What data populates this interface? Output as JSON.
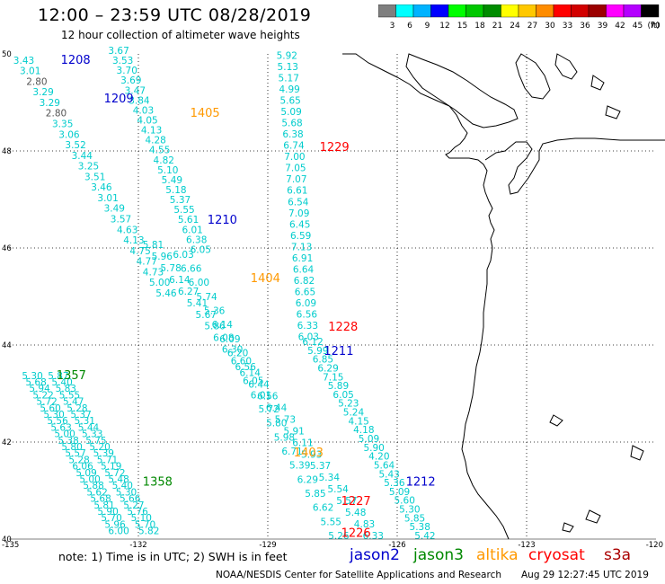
{
  "header": {
    "title": "12:00 – 23:59 UTC 08/28/2019",
    "subtitle": "12 hour collection of altimeter wave heights"
  },
  "colorbar": {
    "colors": [
      "#7f7f7f",
      "#00ffff",
      "#00b3ff",
      "#0000ff",
      "#00ff00",
      "#00c800",
      "#008c00",
      "#ffff00",
      "#ffc800",
      "#ff8c00",
      "#ff0000",
      "#d20000",
      "#9b0000",
      "#ff00ff",
      "#b400ff",
      "#000000"
    ],
    "ticks": [
      "3",
      "6",
      "9",
      "12",
      "15",
      "18",
      "21",
      "24",
      "27",
      "30",
      "33",
      "36",
      "39",
      "42",
      "45",
      "70"
    ],
    "unit": "(ft)"
  },
  "axes": {
    "lat_labels": [
      "50",
      "48",
      "46",
      "44",
      "42",
      "40"
    ],
    "lon_labels": [
      "-135",
      "-132",
      "-129",
      "-126",
      "-123",
      "-120"
    ],
    "lat_range": [
      40,
      50
    ],
    "lon_range": [
      -135,
      -120
    ]
  },
  "colors": {
    "swh": "#00cccc",
    "swh_grey": "#555555",
    "jason2": "#0000cc",
    "jason3": "#008800",
    "altika": "#ff9900",
    "cryosat": "#ff0000",
    "s3a": "#aa0000",
    "coast": "#000000"
  },
  "pass_labels": [
    {
      "text": "1208",
      "lon": -133.8,
      "lat": 49.8,
      "mission": "jason2"
    },
    {
      "text": "1209",
      "lon": -132.8,
      "lat": 49.0,
      "mission": "jason2"
    },
    {
      "text": "1405",
      "lon": -130.8,
      "lat": 48.7,
      "mission": "altika"
    },
    {
      "text": "1229",
      "lon": -127.8,
      "lat": 48.0,
      "mission": "cryosat"
    },
    {
      "text": "1210",
      "lon": -130.4,
      "lat": 46.5,
      "mission": "jason2"
    },
    {
      "text": "1404",
      "lon": -129.4,
      "lat": 45.3,
      "mission": "altika"
    },
    {
      "text": "1228",
      "lon": -127.6,
      "lat": 44.3,
      "mission": "cryosat"
    },
    {
      "text": "1211",
      "lon": -127.7,
      "lat": 43.8,
      "mission": "jason2"
    },
    {
      "text": "1357",
      "lon": -133.9,
      "lat": 43.3,
      "mission": "jason3"
    },
    {
      "text": "1403",
      "lon": -128.4,
      "lat": 41.7,
      "mission": "altika"
    },
    {
      "text": "1212",
      "lon": -125.8,
      "lat": 41.1,
      "mission": "jason2"
    },
    {
      "text": "1358",
      "lon": -131.9,
      "lat": 41.1,
      "mission": "jason3"
    },
    {
      "text": "1227",
      "lon": -127.3,
      "lat": 40.7,
      "mission": "cryosat"
    },
    {
      "text": "1226",
      "lon": -127.3,
      "lat": 40.05,
      "mission": "cryosat"
    }
  ],
  "tracks": [
    {
      "name": "track-1208",
      "start": [
        -134.9,
        49.8
      ],
      "end": [
        -131.6,
        45.0
      ],
      "values": [
        "3.43",
        "3.01",
        "2.80",
        "3.29",
        "3.29",
        "2.80",
        "3.35",
        "3.06",
        "3.52",
        "3.44",
        "3.25",
        "3.51",
        "3.46",
        "3.01",
        "3.49",
        "3.57",
        "4.63",
        "4.13",
        "4.75",
        "4.77",
        "4.73",
        "5.00",
        "5.46"
      ],
      "grey_indices": [
        2,
        5
      ]
    },
    {
      "name": "track-1405",
      "start": [
        -132.7,
        50.0
      ],
      "end": [
        -130.8,
        45.9
      ],
      "values": [
        "3.67",
        "3.53",
        "3.70",
        "3.69",
        "3.47",
        "3.84",
        "4.03",
        "4.05",
        "4.13",
        "4.28",
        "4.55",
        "4.82",
        "5.10",
        "5.49",
        "5.18",
        "5.37",
        "5.55",
        "5.61",
        "6.01",
        "6.38",
        "6.05"
      ]
    },
    {
      "name": "track-1210",
      "start": [
        -131.9,
        46.0
      ],
      "end": [
        -126.8,
        40.0
      ],
      "values": [
        "5.81",
        "5.96",
        "5.78",
        "6.14",
        "6.27",
        "5.41",
        "5.67",
        "5.86",
        "6.08",
        "6.30",
        "6.60",
        "6.14",
        "6.44",
        "6.56",
        "6.44",
        "5.73",
        "5.91",
        "6.11",
        "5.93",
        "5.37",
        "5.34",
        "5.54",
        "5.57",
        "5.48",
        "4.83",
        "6.33"
      ]
    },
    {
      "name": "track-1404",
      "start": [
        -131.2,
        45.8
      ],
      "end": [
        -127.6,
        40.0
      ],
      "values": [
        "6.03",
        "6.66",
        "6.00",
        "5.74",
        "5.36",
        "6.14",
        "6.09",
        "6.20",
        "6.56",
        "6.05",
        "6.01",
        "5.72",
        "5.80",
        "5.98",
        "6.71",
        "5.39",
        "6.29",
        "5.85",
        "6.62",
        "5.55",
        "5.26"
      ]
    },
    {
      "name": "track-1229",
      "start": [
        -128.8,
        49.9
      ],
      "end": [
        -128.3,
        44.1
      ],
      "values": [
        "5.92",
        "5.13",
        "5.17",
        "4.99",
        "5.65",
        "5.09",
        "5.68",
        "6.38",
        "6.74",
        "7.00",
        "7.05",
        "7.07",
        "6.61",
        "6.54",
        "7.09",
        "6.45",
        "6.59",
        "7.13",
        "6.91",
        "6.64",
        "6.82",
        "6.65",
        "6.09",
        "6.56",
        "6.33",
        "6.03"
      ]
    },
    {
      "name": "track-1211",
      "start": [
        -128.2,
        44.0
      ],
      "end": [
        -125.6,
        40.0
      ],
      "values": [
        "6.12",
        "5.99",
        "6.85",
        "6.29",
        "7.15",
        "5.89",
        "6.05",
        "5.23",
        "5.24",
        "4.15",
        "4.18",
        "5.09",
        "5.90",
        "4.20",
        "5.64",
        "5.43",
        "5.36",
        "5.09",
        "5.60",
        "5.30",
        "5.85",
        "5.38",
        "5.42"
      ]
    },
    {
      "name": "track-1357",
      "start": [
        -134.7,
        43.3
      ],
      "end": [
        -132.7,
        40.1
      ],
      "values": [
        "5.30",
        "5.68",
        "5.94",
        "5.22",
        "5.72",
        "5.60",
        "5.30",
        "5.56",
        "5.63",
        "5.00",
        "5.38",
        "5.80",
        "5.57",
        "5.28",
        "6.06",
        "5.09",
        "5.00",
        "5.88",
        "5.62",
        "5.68",
        "5.81",
        "5.90",
        "5.70",
        "5.96",
        "6.00"
      ]
    },
    {
      "name": "track-1358",
      "start": [
        -134.1,
        43.3
      ],
      "end": [
        -132.0,
        40.1
      ],
      "values": [
        "5.87",
        "5.40",
        "5.83",
        "5.55",
        "5.47",
        "5.28",
        "5.37",
        "5.31",
        "5.44",
        "5.33",
        "5.75",
        "5.20",
        "5.39",
        "5.71",
        "5.19",
        "5.72",
        "5.48",
        "5.40",
        "5.30",
        "5.66",
        "5.27",
        "5.76",
        "5.10",
        "5.70",
        "5.82"
      ]
    }
  ],
  "notes": {
    "text": "note:  1) Time is in UTC;  2) SWH is in feet"
  },
  "legend": [
    {
      "label": "jason2",
      "color": "#0000cc"
    },
    {
      "label": "jason3",
      "color": "#008800"
    },
    {
      "label": "altika",
      "color": "#ff9900"
    },
    {
      "label": "cryosat",
      "color": "#ff0000"
    },
    {
      "label": "s3a",
      "color": "#aa0000"
    }
  ],
  "footer": {
    "credit": "NOAA/NESDIS Center for Satellite Applications and Research",
    "timestamp": "Aug 29 12:27:45 UTC 2019"
  }
}
